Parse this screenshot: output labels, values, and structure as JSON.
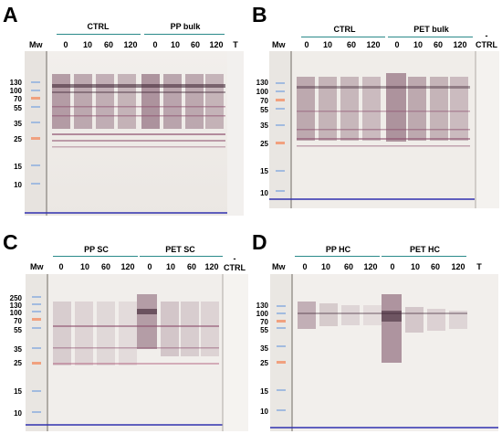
{
  "panels": [
    {
      "letter": "A",
      "mw_label": "Mw",
      "groups": [
        "CTRL",
        "PP bulk"
      ],
      "lanes": [
        "0",
        "10",
        "60",
        "120",
        "0",
        "10",
        "60",
        "120",
        "T"
      ],
      "markers": [
        "130",
        "100",
        "70",
        "55",
        "35",
        "25",
        "15",
        "10"
      ]
    },
    {
      "letter": "B",
      "mw_label": "Mw",
      "groups": [
        "CTRL",
        "PET bulk"
      ],
      "lanes": [
        "0",
        "10",
        "60",
        "120",
        "0",
        "10",
        "60",
        "120"
      ],
      "extra_label": "-\nCTRL",
      "markers": [
        "130",
        "100",
        "70",
        "55",
        "35",
        "25",
        "15",
        "10"
      ]
    },
    {
      "letter": "C",
      "mw_label": "Mw",
      "groups": [
        "PP SC",
        "PET SC"
      ],
      "lanes": [
        "0",
        "10",
        "60",
        "120",
        "0",
        "10",
        "60",
        "120"
      ],
      "extra_label": "-\nCTRL",
      "markers": [
        "250",
        "130",
        "100",
        "70",
        "55",
        "35",
        "25",
        "15",
        "10"
      ]
    },
    {
      "letter": "D",
      "mw_label": "Mw",
      "groups": [
        "PP HC",
        "PET HC"
      ],
      "lanes": [
        "0",
        "10",
        "60",
        "120",
        "0",
        "10",
        "60",
        "120",
        "T"
      ],
      "markers": [
        "130",
        "100",
        "70",
        "55",
        "35",
        "25",
        "15",
        "10"
      ]
    }
  ],
  "colors": {
    "underline": "#2a8a8a",
    "band": "#8a4a6a",
    "blot_bg": "#eeeae6"
  }
}
